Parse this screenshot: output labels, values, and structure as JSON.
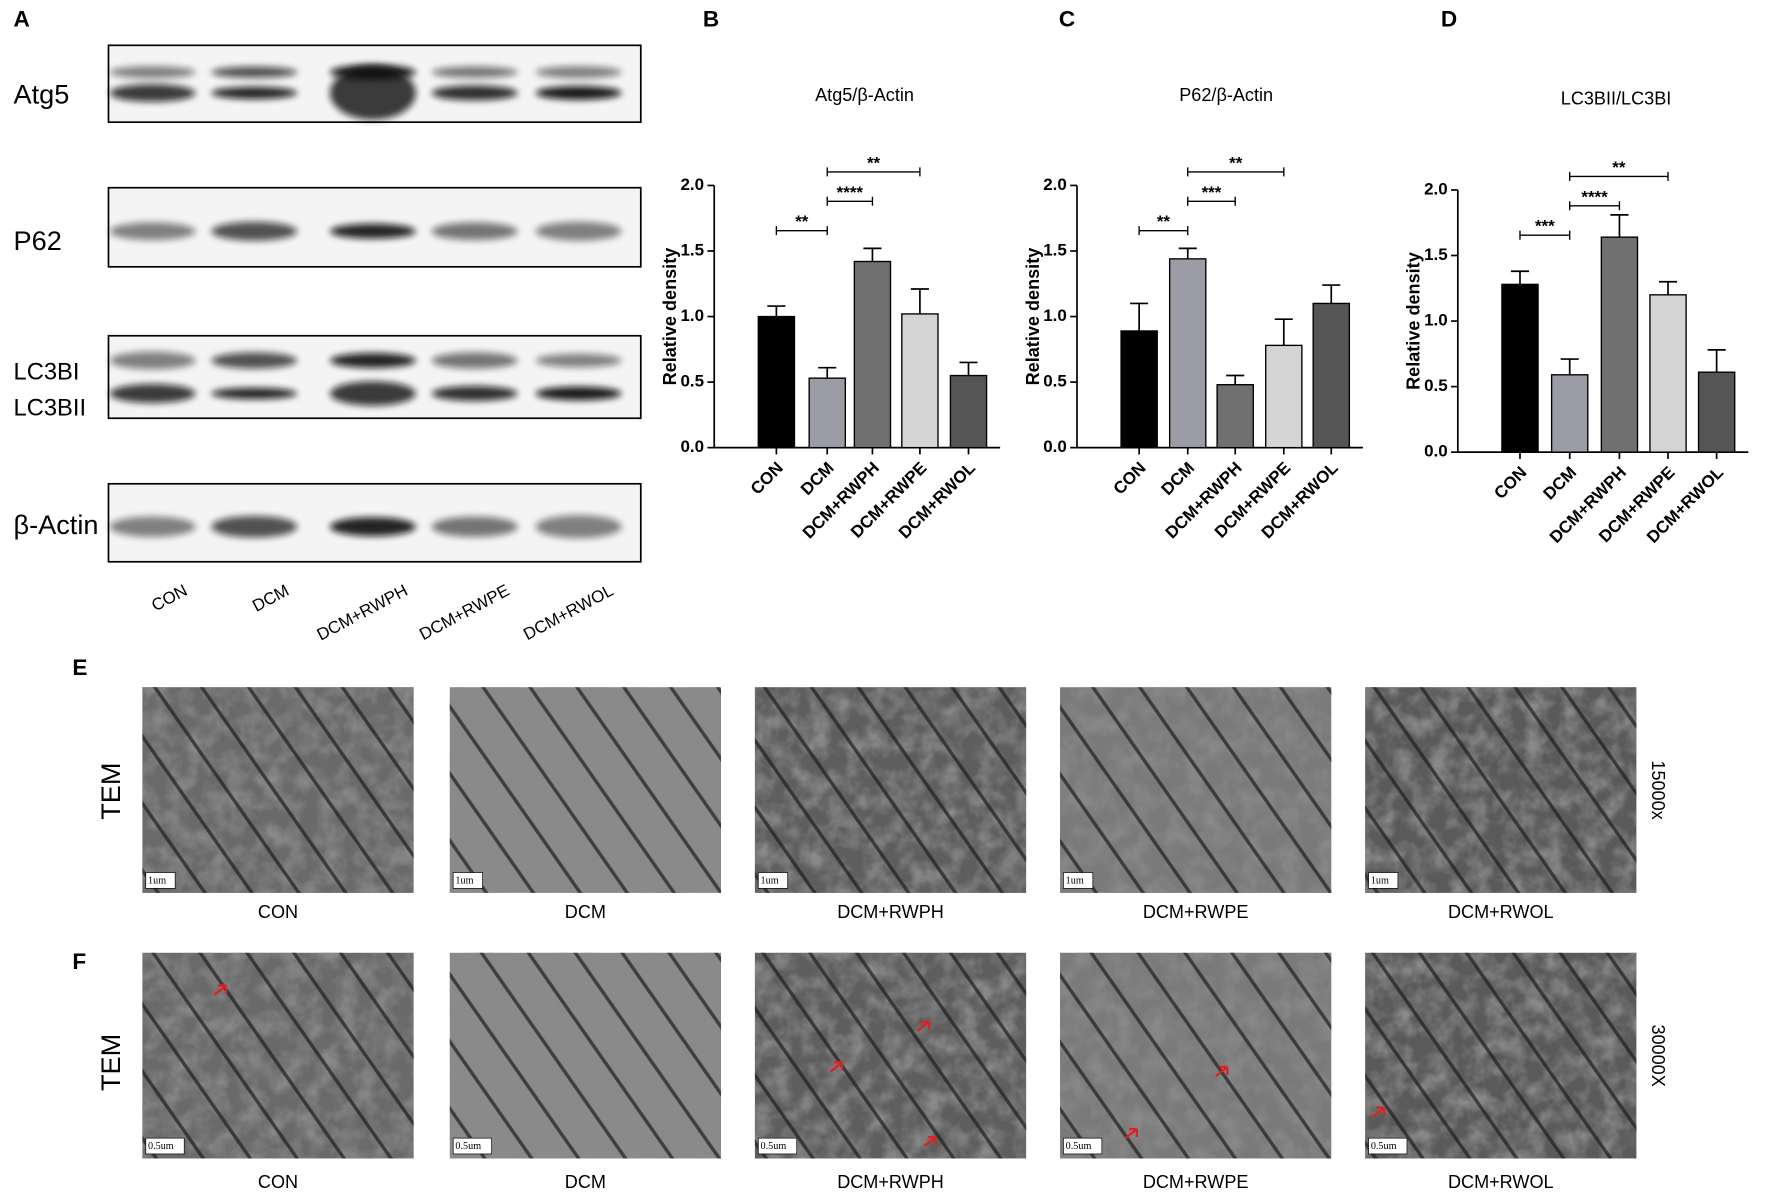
{
  "chart_data": [
    {
      "type": "bar",
      "panel": "B",
      "title": "Atg5/β-Actin",
      "y_label": "Relative density",
      "categories": [
        "CON",
        "DCM",
        "DCM+RWPH",
        "DCM+RWPE",
        "DCM+RWOL"
      ],
      "values": [
        1.0,
        0.53,
        1.42,
        1.02,
        0.55
      ],
      "errors": [
        0.08,
        0.08,
        0.1,
        0.19,
        0.1
      ],
      "colors": [
        "#000000",
        "#9c9ca6",
        "#707070",
        "#d4d4d4",
        "#555555"
      ],
      "ylim": [
        0,
        2
      ],
      "yticks": [
        {
          "value": 0,
          "label": "0.0"
        },
        0.5,
        {
          "value": 1,
          "label": "1.0"
        },
        1.5,
        {
          "value": 2,
          "label": "2.0"
        }
      ],
      "comparisons": [
        {
          "between": [
            "CON",
            "DCM"
          ],
          "label": "**"
        },
        {
          "between": [
            "DCM",
            "DCM+RWPH"
          ],
          "label": "****"
        },
        {
          "between": [
            "DCM",
            "DCM+RWPE"
          ],
          "label": "**"
        }
      ]
    },
    {
      "type": "bar",
      "panel": "C",
      "title": "P62/β-Actin",
      "y_label": "Relative density",
      "categories": [
        "CON",
        "DCM",
        "DCM+RWPH",
        "DCM+RWPE",
        "DCM+RWOL"
      ],
      "values": [
        0.89,
        1.44,
        0.48,
        0.78,
        1.1
      ],
      "errors": [
        0.21,
        0.08,
        0.07,
        0.2,
        0.14
      ],
      "colors": [
        "#000000",
        "#9c9ca6",
        "#707070",
        "#d4d4d4",
        "#555555"
      ],
      "ylim": [
        0,
        2
      ],
      "yticks": [
        {
          "value": 0,
          "label": "0.0"
        },
        0.5,
        {
          "value": 1,
          "label": "1.0"
        },
        1.5,
        {
          "value": 2,
          "label": "2.0"
        }
      ],
      "comparisons": [
        {
          "between": [
            "CON",
            "DCM"
          ],
          "label": "**"
        },
        {
          "between": [
            "DCM",
            "DCM+RWPH"
          ],
          "label": "***"
        },
        {
          "between": [
            "DCM",
            "DCM+RWPE"
          ],
          "label": "**"
        }
      ]
    },
    {
      "type": "bar",
      "panel": "D",
      "title": "LC3BII/LC3BI",
      "y_label": "Relative density",
      "categories": [
        "CON",
        "DCM",
        "DCM+RWPH",
        "DCM+RWPE",
        "DCM+RWOL"
      ],
      "values": [
        1.28,
        0.59,
        1.64,
        1.2,
        0.61
      ],
      "errors": [
        0.1,
        0.12,
        0.17,
        0.1,
        0.17
      ],
      "colors": [
        "#000000",
        "#9c9ca6",
        "#707070",
        "#d4d4d4",
        "#555555"
      ],
      "ylim": [
        0,
        2
      ],
      "yticks": [
        {
          "value": 0,
          "label": "0.0"
        },
        0.5,
        {
          "value": 1,
          "label": "1.0"
        },
        1.5,
        {
          "value": 2,
          "label": "2.0"
        }
      ],
      "comparisons": [
        {
          "between": [
            "CON",
            "DCM"
          ],
          "label": "***"
        },
        {
          "between": [
            "DCM",
            "DCM+RWPH"
          ],
          "label": "****"
        },
        {
          "between": [
            "DCM",
            "DCM+RWPE"
          ],
          "label": "**"
        }
      ]
    }
  ],
  "blot": {
    "panel": "A",
    "rows": [
      "Atg5",
      "P62",
      "LC3BI",
      "LC3BII",
      "β-Actin"
    ],
    "lanes": [
      "CON",
      "DCM",
      "DCM+RWPH",
      "DCM+RWPE",
      "DCM+RWOL"
    ]
  },
  "tem": [
    {
      "panel": "E",
      "label": "TEM",
      "magnification": "15000x",
      "scale": "1um",
      "captions": [
        "CON",
        "DCM",
        "DCM+RWPH",
        "DCM+RWPE",
        "DCM+RWOL"
      ]
    },
    {
      "panel": "F",
      "label": "TEM",
      "magnification": "30000X",
      "scale": "0.5um",
      "captions": [
        "CON",
        "DCM",
        "DCM+RWPH",
        "DCM+RWPE",
        "DCM+RWOL"
      ]
    }
  ]
}
